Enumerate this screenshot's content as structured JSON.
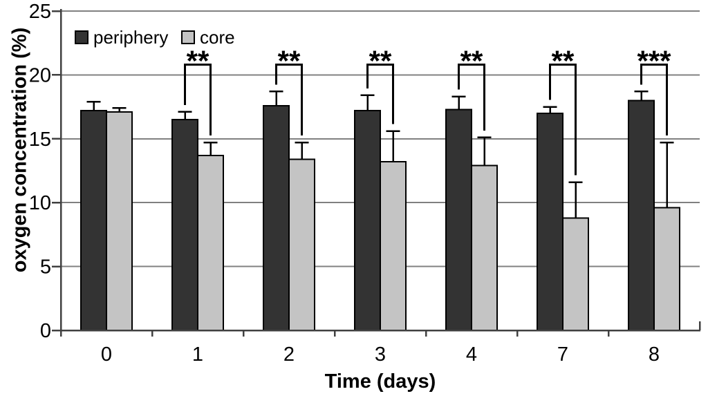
{
  "figure": {
    "background": "#ffffff"
  },
  "chart_data": {
    "type": "bar",
    "title": "",
    "xlabel": "Time (days)",
    "ylabel": "oxygen concentration (%)",
    "categories": [
      "0",
      "1",
      "2",
      "3",
      "4",
      "7",
      "8"
    ],
    "ylim": [
      0,
      25
    ],
    "yticks": [
      0,
      5,
      10,
      15,
      20,
      25
    ],
    "grid": true,
    "legend_position": "top-left-inside",
    "series": [
      {
        "name": "periphery",
        "color": "#333333",
        "values": [
          17.2,
          16.5,
          17.6,
          17.2,
          17.3,
          17.0,
          18.0
        ],
        "errors_up": [
          0.7,
          0.6,
          1.1,
          1.2,
          1.0,
          0.5,
          0.7
        ]
      },
      {
        "name": "core",
        "color": "#c4c4c4",
        "values": [
          17.1,
          13.7,
          13.4,
          13.2,
          12.9,
          8.8,
          9.6
        ],
        "errors_up": [
          0.3,
          1.0,
          1.3,
          2.4,
          2.2,
          2.8,
          5.1
        ]
      }
    ],
    "significance": [
      {
        "category": "1",
        "label": "**"
      },
      {
        "category": "2",
        "label": "**"
      },
      {
        "category": "3",
        "label": "**"
      },
      {
        "category": "4",
        "label": "**"
      },
      {
        "category": "7",
        "label": "**"
      },
      {
        "category": "8",
        "label": "***"
      }
    ],
    "significance_bar_value": 20.8,
    "colors": {
      "grid": "#808080",
      "axis": "#404040",
      "bar_border": "#000000",
      "error_bar": "#000000",
      "bracket": "#000000",
      "text": "#000000"
    }
  }
}
